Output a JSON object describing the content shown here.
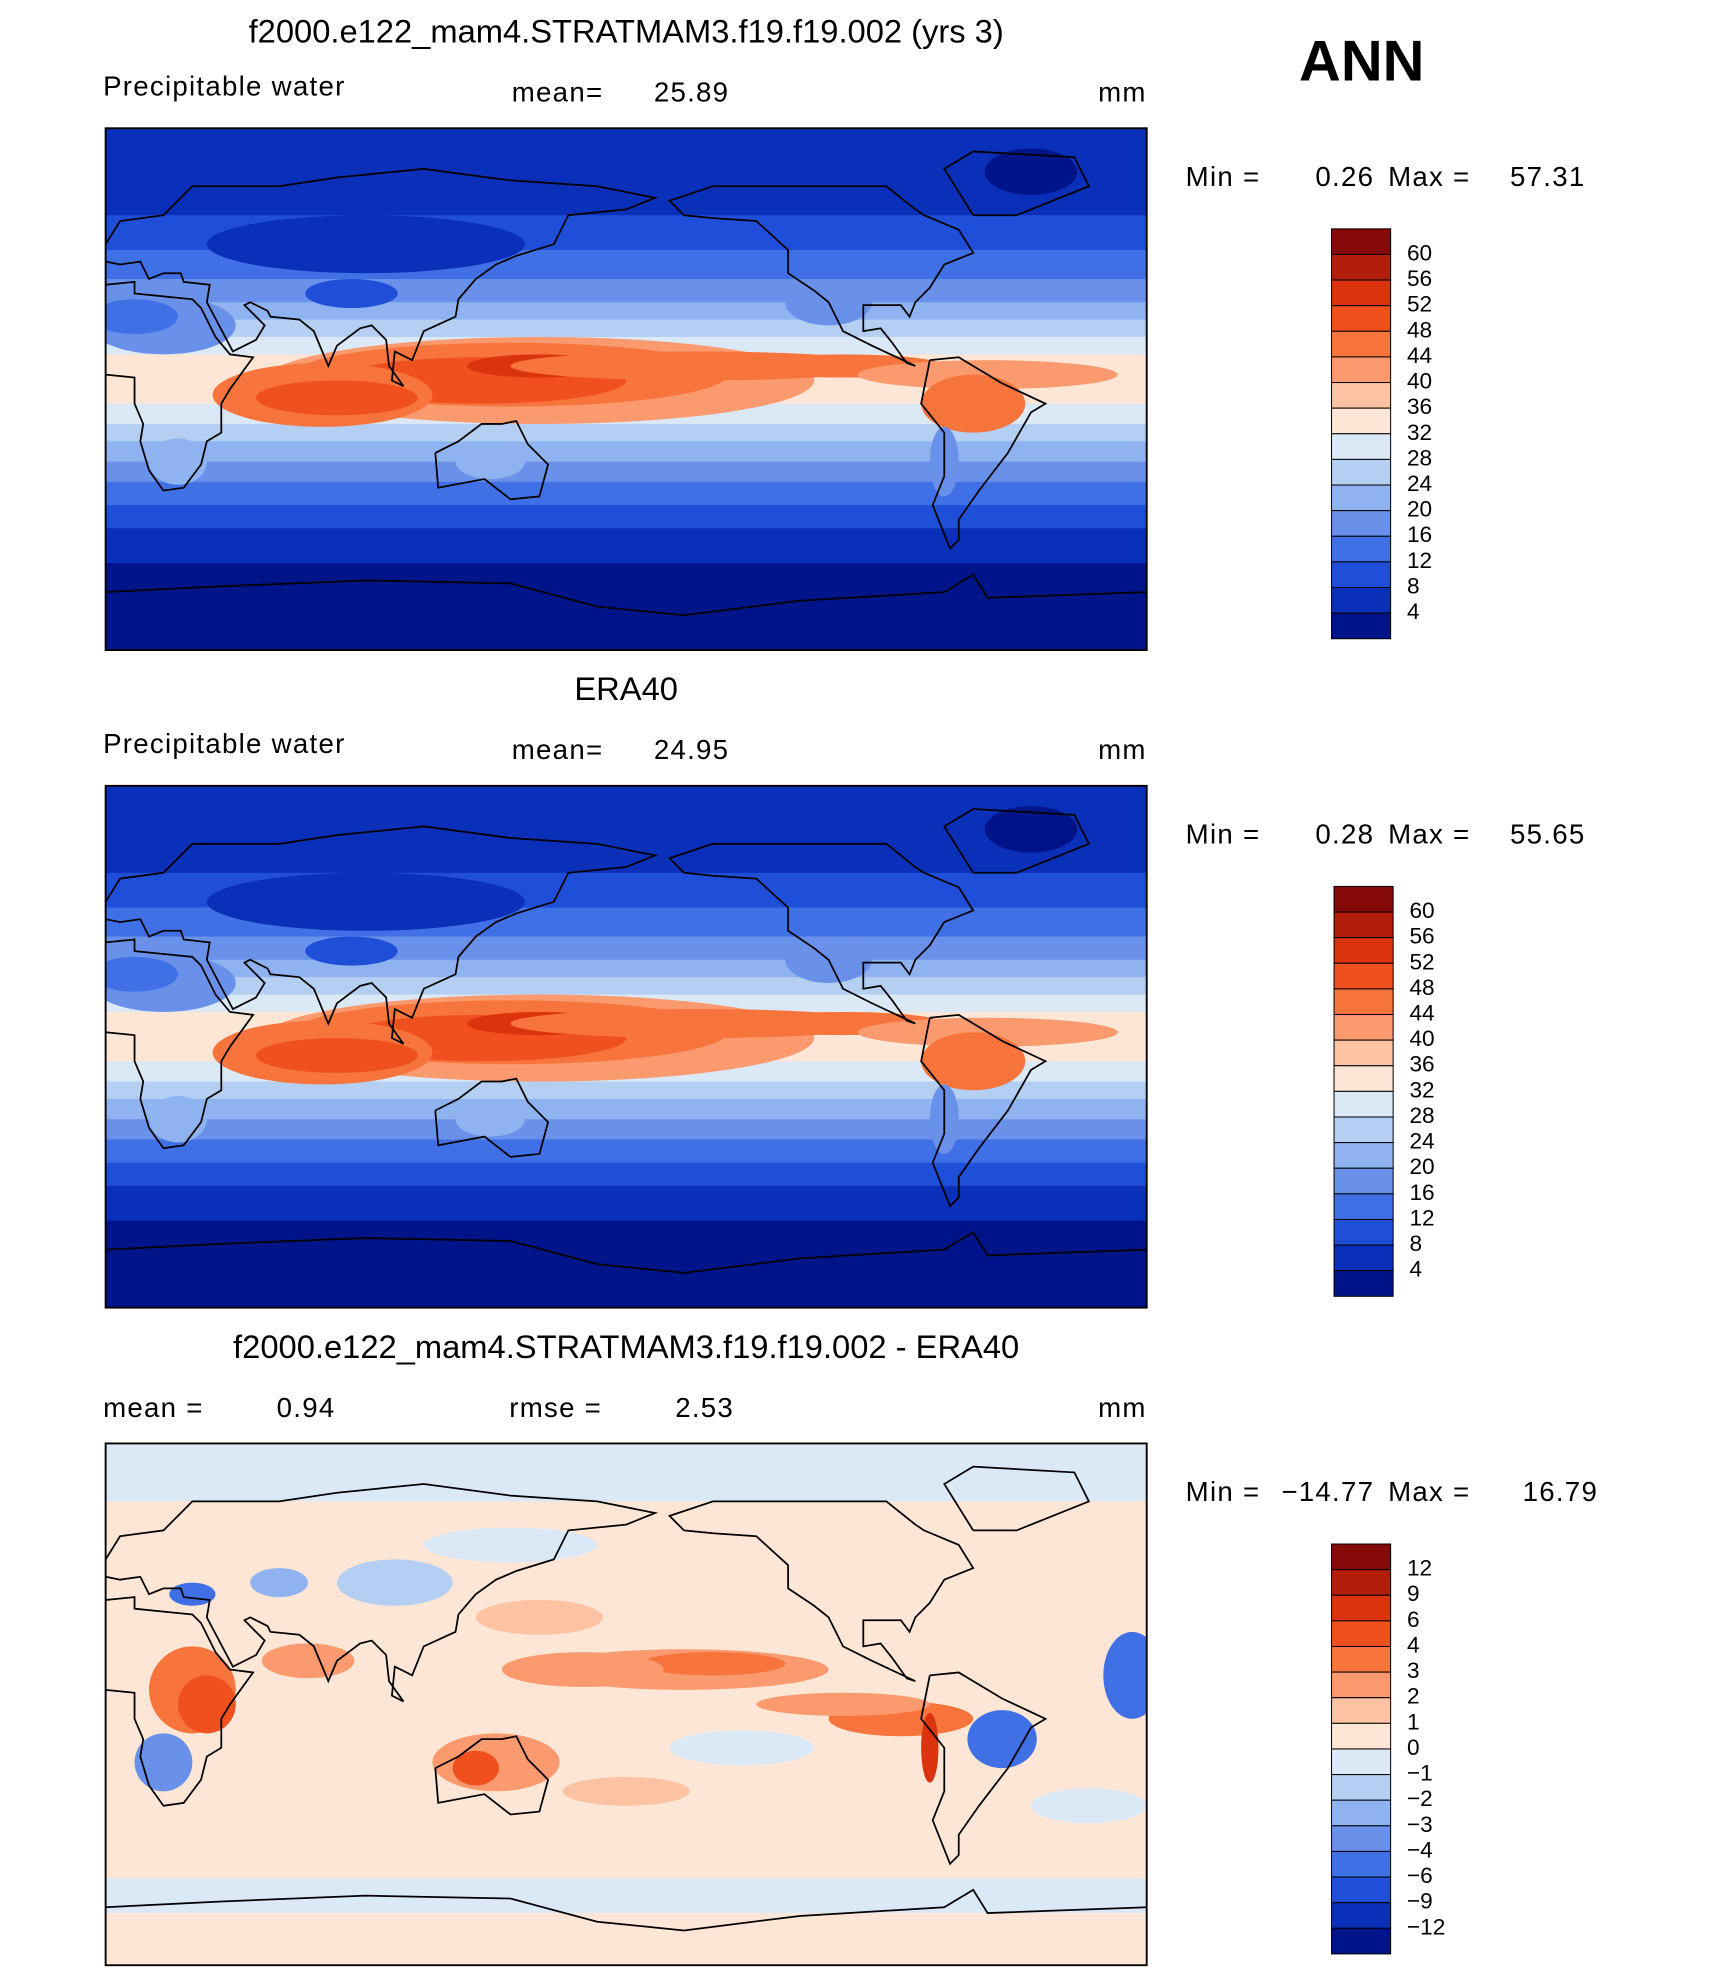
{
  "label": "ANN",
  "palette": [
    "#870a0a",
    "#b31e0a",
    "#db330e",
    "#f0501e",
    "#f7743c",
    "#fa9a6e",
    "#fcc3a3",
    "#fde6d6",
    "#dbe9f7",
    "#b4cff2",
    "#8fb3f0",
    "#6a91ea",
    "#4070e6",
    "#1f4fd8",
    "#0a2fb8",
    "#00148a"
  ],
  "panels": [
    {
      "title": "f2000.e122_mam4.STRATMAM3.f19.f19.002 (yrs 3)",
      "variable": "Precipitable water",
      "stats": [
        {
          "label": "mean=",
          "value": "25.89"
        }
      ],
      "units": "mm",
      "extremes": {
        "min_label": "Min =",
        "min": "0.26",
        "max_label": "Max =",
        "max": "57.31"
      },
      "colorbar": [
        "60",
        "56",
        "52",
        "48",
        "44",
        "40",
        "36",
        "32",
        "28",
        "24",
        "20",
        "16",
        "12",
        "8",
        "4"
      ]
    },
    {
      "title": "ERA40",
      "variable": "Precipitable water",
      "stats": [
        {
          "label": "mean=",
          "value": "24.95"
        }
      ],
      "units": "mm",
      "extremes": {
        "min_label": "Min =",
        "min": "0.28",
        "max_label": "Max =",
        "max": "55.65"
      },
      "colorbar": [
        "60",
        "56",
        "52",
        "48",
        "44",
        "40",
        "36",
        "32",
        "28",
        "24",
        "20",
        "16",
        "12",
        "8",
        "4"
      ]
    },
    {
      "title": "f2000.e122_mam4.STRATMAM3.f19.f19.002 - ERA40",
      "stats": [
        {
          "label": "mean =",
          "value": "0.94"
        },
        {
          "label": "rmse =",
          "value": "2.53"
        }
      ],
      "units": "mm",
      "extremes": {
        "min_label": "Min =",
        "min": "−14.77",
        "max_label": "Max =",
        "max": "16.79"
      },
      "colorbar": [
        "12",
        "9",
        "6",
        "4",
        "3",
        "2",
        "1",
        "0",
        "−1",
        "−2",
        "−3",
        "−4",
        "−6",
        "−9",
        "−12"
      ]
    }
  ]
}
